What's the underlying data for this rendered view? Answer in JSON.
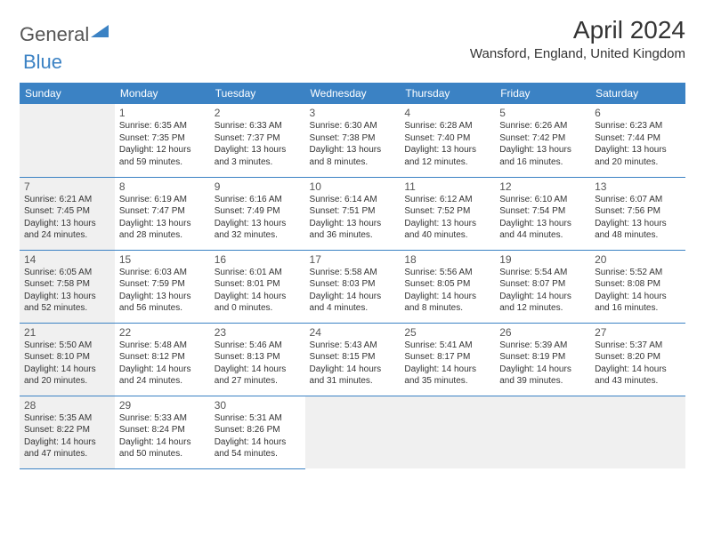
{
  "logo": {
    "part1": "General",
    "part2": "Blue"
  },
  "title": "April 2024",
  "location": "Wansford, England, United Kingdom",
  "colors": {
    "header_bg": "#3b82c4",
    "header_text": "#ffffff",
    "sunday_bg": "#f0f0f0",
    "border": "#3b82c4",
    "text": "#333333"
  },
  "dayHeaders": [
    "Sunday",
    "Monday",
    "Tuesday",
    "Wednesday",
    "Thursday",
    "Friday",
    "Saturday"
  ],
  "weeks": [
    [
      null,
      {
        "n": "1",
        "sr": "Sunrise: 6:35 AM",
        "ss": "Sunset: 7:35 PM",
        "d1": "Daylight: 12 hours",
        "d2": "and 59 minutes."
      },
      {
        "n": "2",
        "sr": "Sunrise: 6:33 AM",
        "ss": "Sunset: 7:37 PM",
        "d1": "Daylight: 13 hours",
        "d2": "and 3 minutes."
      },
      {
        "n": "3",
        "sr": "Sunrise: 6:30 AM",
        "ss": "Sunset: 7:38 PM",
        "d1": "Daylight: 13 hours",
        "d2": "and 8 minutes."
      },
      {
        "n": "4",
        "sr": "Sunrise: 6:28 AM",
        "ss": "Sunset: 7:40 PM",
        "d1": "Daylight: 13 hours",
        "d2": "and 12 minutes."
      },
      {
        "n": "5",
        "sr": "Sunrise: 6:26 AM",
        "ss": "Sunset: 7:42 PM",
        "d1": "Daylight: 13 hours",
        "d2": "and 16 minutes."
      },
      {
        "n": "6",
        "sr": "Sunrise: 6:23 AM",
        "ss": "Sunset: 7:44 PM",
        "d1": "Daylight: 13 hours",
        "d2": "and 20 minutes."
      }
    ],
    [
      {
        "n": "7",
        "sr": "Sunrise: 6:21 AM",
        "ss": "Sunset: 7:45 PM",
        "d1": "Daylight: 13 hours",
        "d2": "and 24 minutes."
      },
      {
        "n": "8",
        "sr": "Sunrise: 6:19 AM",
        "ss": "Sunset: 7:47 PM",
        "d1": "Daylight: 13 hours",
        "d2": "and 28 minutes."
      },
      {
        "n": "9",
        "sr": "Sunrise: 6:16 AM",
        "ss": "Sunset: 7:49 PM",
        "d1": "Daylight: 13 hours",
        "d2": "and 32 minutes."
      },
      {
        "n": "10",
        "sr": "Sunrise: 6:14 AM",
        "ss": "Sunset: 7:51 PM",
        "d1": "Daylight: 13 hours",
        "d2": "and 36 minutes."
      },
      {
        "n": "11",
        "sr": "Sunrise: 6:12 AM",
        "ss": "Sunset: 7:52 PM",
        "d1": "Daylight: 13 hours",
        "d2": "and 40 minutes."
      },
      {
        "n": "12",
        "sr": "Sunrise: 6:10 AM",
        "ss": "Sunset: 7:54 PM",
        "d1": "Daylight: 13 hours",
        "d2": "and 44 minutes."
      },
      {
        "n": "13",
        "sr": "Sunrise: 6:07 AM",
        "ss": "Sunset: 7:56 PM",
        "d1": "Daylight: 13 hours",
        "d2": "and 48 minutes."
      }
    ],
    [
      {
        "n": "14",
        "sr": "Sunrise: 6:05 AM",
        "ss": "Sunset: 7:58 PM",
        "d1": "Daylight: 13 hours",
        "d2": "and 52 minutes."
      },
      {
        "n": "15",
        "sr": "Sunrise: 6:03 AM",
        "ss": "Sunset: 7:59 PM",
        "d1": "Daylight: 13 hours",
        "d2": "and 56 minutes."
      },
      {
        "n": "16",
        "sr": "Sunrise: 6:01 AM",
        "ss": "Sunset: 8:01 PM",
        "d1": "Daylight: 14 hours",
        "d2": "and 0 minutes."
      },
      {
        "n": "17",
        "sr": "Sunrise: 5:58 AM",
        "ss": "Sunset: 8:03 PM",
        "d1": "Daylight: 14 hours",
        "d2": "and 4 minutes."
      },
      {
        "n": "18",
        "sr": "Sunrise: 5:56 AM",
        "ss": "Sunset: 8:05 PM",
        "d1": "Daylight: 14 hours",
        "d2": "and 8 minutes."
      },
      {
        "n": "19",
        "sr": "Sunrise: 5:54 AM",
        "ss": "Sunset: 8:07 PM",
        "d1": "Daylight: 14 hours",
        "d2": "and 12 minutes."
      },
      {
        "n": "20",
        "sr": "Sunrise: 5:52 AM",
        "ss": "Sunset: 8:08 PM",
        "d1": "Daylight: 14 hours",
        "d2": "and 16 minutes."
      }
    ],
    [
      {
        "n": "21",
        "sr": "Sunrise: 5:50 AM",
        "ss": "Sunset: 8:10 PM",
        "d1": "Daylight: 14 hours",
        "d2": "and 20 minutes."
      },
      {
        "n": "22",
        "sr": "Sunrise: 5:48 AM",
        "ss": "Sunset: 8:12 PM",
        "d1": "Daylight: 14 hours",
        "d2": "and 24 minutes."
      },
      {
        "n": "23",
        "sr": "Sunrise: 5:46 AM",
        "ss": "Sunset: 8:13 PM",
        "d1": "Daylight: 14 hours",
        "d2": "and 27 minutes."
      },
      {
        "n": "24",
        "sr": "Sunrise: 5:43 AM",
        "ss": "Sunset: 8:15 PM",
        "d1": "Daylight: 14 hours",
        "d2": "and 31 minutes."
      },
      {
        "n": "25",
        "sr": "Sunrise: 5:41 AM",
        "ss": "Sunset: 8:17 PM",
        "d1": "Daylight: 14 hours",
        "d2": "and 35 minutes."
      },
      {
        "n": "26",
        "sr": "Sunrise: 5:39 AM",
        "ss": "Sunset: 8:19 PM",
        "d1": "Daylight: 14 hours",
        "d2": "and 39 minutes."
      },
      {
        "n": "27",
        "sr": "Sunrise: 5:37 AM",
        "ss": "Sunset: 8:20 PM",
        "d1": "Daylight: 14 hours",
        "d2": "and 43 minutes."
      }
    ],
    [
      {
        "n": "28",
        "sr": "Sunrise: 5:35 AM",
        "ss": "Sunset: 8:22 PM",
        "d1": "Daylight: 14 hours",
        "d2": "and 47 minutes."
      },
      {
        "n": "29",
        "sr": "Sunrise: 5:33 AM",
        "ss": "Sunset: 8:24 PM",
        "d1": "Daylight: 14 hours",
        "d2": "and 50 minutes."
      },
      {
        "n": "30",
        "sr": "Sunrise: 5:31 AM",
        "ss": "Sunset: 8:26 PM",
        "d1": "Daylight: 14 hours",
        "d2": "and 54 minutes."
      },
      null,
      null,
      null,
      null
    ]
  ]
}
